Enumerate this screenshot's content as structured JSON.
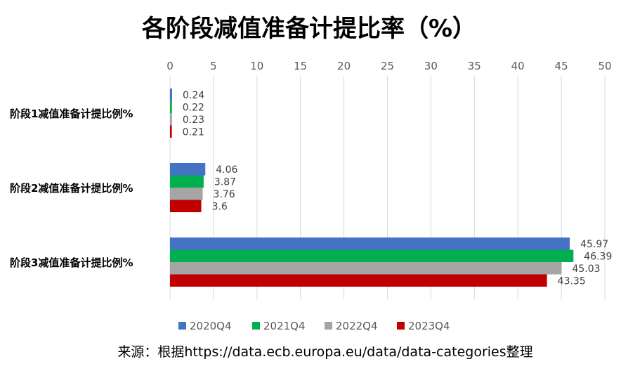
{
  "chart_data": {
    "type": "bar",
    "orientation": "horizontal",
    "title": "各阶段减值准备计提比率（%）",
    "categories": [
      "阶段1减值准备计提比例%",
      "阶段2减值准备计提比例%",
      "阶段3减值准备计提比例%"
    ],
    "series": [
      {
        "name": "2020Q4",
        "color": "#4472c4",
        "values": [
          0.24,
          4.06,
          45.97
        ],
        "labels": [
          "0.24",
          "4.06",
          "45.97"
        ]
      },
      {
        "name": "2021Q4",
        "color": "#00b050",
        "values": [
          0.22,
          3.87,
          46.39
        ],
        "labels": [
          "0.22",
          "3.87",
          "46.39"
        ]
      },
      {
        "name": "2022Q4",
        "color": "#a5a5a5",
        "values": [
          0.23,
          3.76,
          45.03
        ],
        "labels": [
          "0.23",
          "3.76",
          "45.03"
        ]
      },
      {
        "name": "2023Q4",
        "color": "#c00000",
        "values": [
          0.21,
          3.6,
          43.35
        ],
        "labels": [
          "0.21",
          "3.6",
          "43.35"
        ]
      }
    ],
    "xlim": [
      0,
      50
    ],
    "x_ticks": [
      "0",
      "5",
      "10",
      "15",
      "20",
      "25",
      "30",
      "35",
      "40",
      "45",
      "50"
    ],
    "axis_position": "top",
    "grid": true,
    "legend_position": "bottom",
    "source": "来源：根据https://data.ecb.europa.eu/data/data-categories整理"
  }
}
